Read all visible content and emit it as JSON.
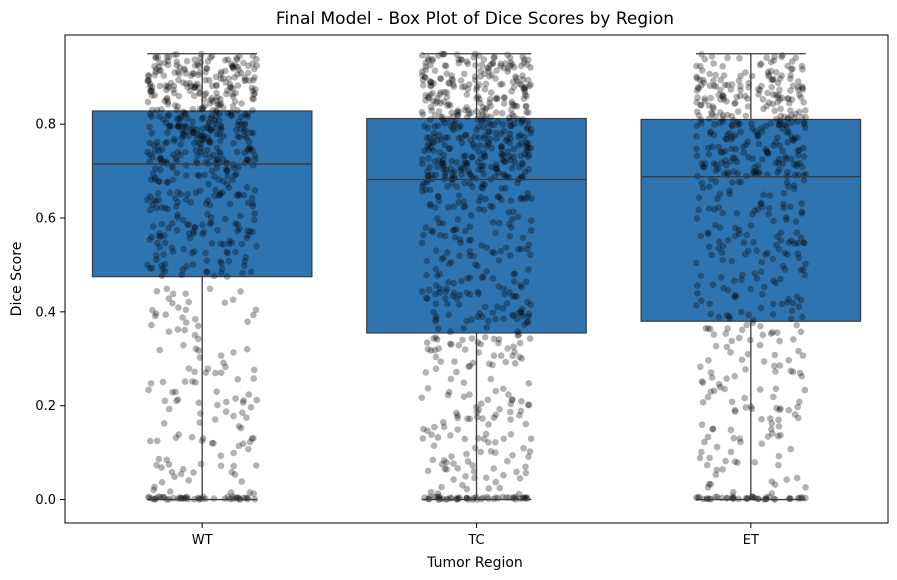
{
  "chart_data": {
    "type": "box",
    "title": "Final Model - Box Plot of Dice Scores by Region",
    "xlabel": "Tumor Region",
    "ylabel": "Dice Score",
    "ylim": [
      -0.05,
      0.99
    ],
    "yticks": [
      0.0,
      0.2,
      0.4,
      0.6,
      0.8
    ],
    "ytick_labels": [
      "0.0",
      "0.2",
      "0.4",
      "0.6",
      "0.8"
    ],
    "categories": [
      "WT",
      "TC",
      "ET"
    ],
    "box_color": "#2e74b0",
    "point_color": "#000000",
    "grid": false,
    "boxes": [
      {
        "category": "WT",
        "whisker_low": 0.0,
        "q1": 0.475,
        "median": 0.715,
        "q3": 0.828,
        "whisker_high": 0.95
      },
      {
        "category": "TC",
        "whisker_low": 0.0,
        "q1": 0.355,
        "median": 0.682,
        "q3": 0.812,
        "whisker_high": 0.95
      },
      {
        "category": "ET",
        "whisker_low": 0.0,
        "q1": 0.38,
        "median": 0.688,
        "q3": 0.81,
        "whisker_high": 0.95
      }
    ],
    "points_per_category": [
      700,
      800,
      600
    ]
  }
}
